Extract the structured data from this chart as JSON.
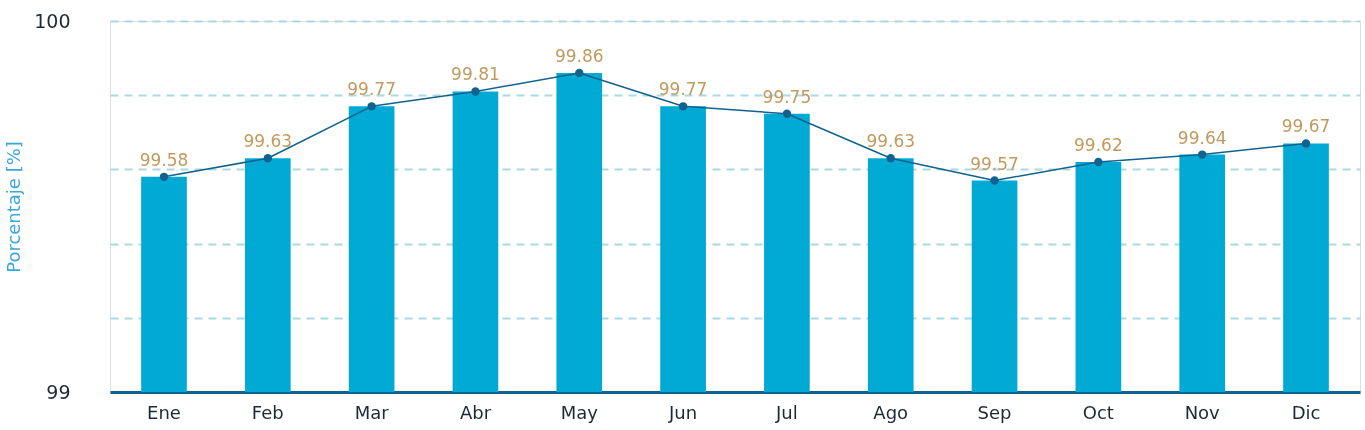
{
  "chart_data": {
    "type": "bar",
    "ylabel": "Porcentaje [%]",
    "categories": [
      "Ene",
      "Feb",
      "Mar",
      "Abr",
      "May",
      "Jun",
      "Jul",
      "Ago",
      "Sep",
      "Oct",
      "Nov",
      "Dic"
    ],
    "series": [
      {
        "color": "#00aad4",
        "values": [
          99.58,
          99.63,
          99.77,
          99.81,
          99.86,
          99.77,
          99.75,
          99.63,
          99.57,
          99.62,
          99.64,
          99.67
        ]
      },
      {
        "type": "line",
        "color": "#12628f",
        "values": [
          99.58,
          99.63,
          99.77,
          99.81,
          99.86,
          99.77,
          99.75,
          99.63,
          99.57,
          99.62,
          99.64,
          99.67
        ],
        "value_labels": [
          "99.58",
          "99.63",
          "99.77",
          "99.81",
          "99.86",
          "99.77",
          "99.75",
          "99.63",
          "99.57",
          "99.62",
          "99.64",
          "99.67"
        ]
      }
    ],
    "ylim": [
      99,
      100
    ],
    "yticks": [
      99,
      {
        "value": 99.2,
        "label": null
      },
      {
        "value": 99.4,
        "label": null
      },
      {
        "value": 99.6,
        "label": null
      },
      {
        "value": 99.8,
        "label": null
      },
      100
    ],
    "grid": "y",
    "marker": "circle"
  }
}
